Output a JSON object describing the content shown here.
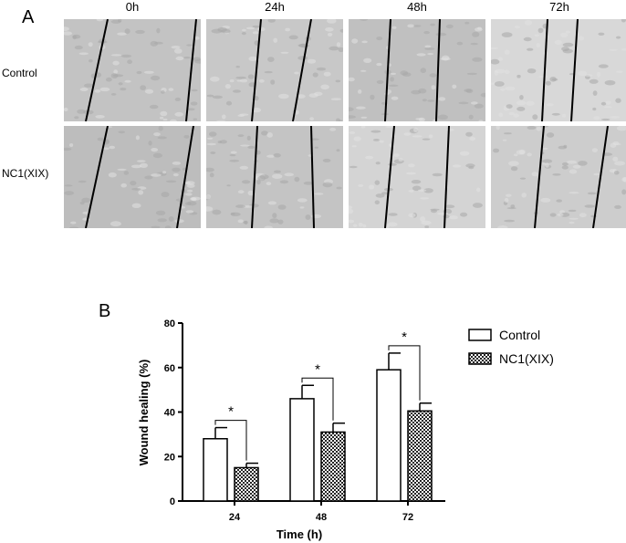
{
  "figure": {
    "panel_a_label": "A",
    "panel_b_label": "B",
    "time_columns": [
      "0h",
      "24h",
      "48h",
      "72h"
    ],
    "row_labels": [
      "Control",
      "NC1(XIX)"
    ],
    "micrograph_tones": [
      [
        "#c3c3c3",
        "#c8c8c8",
        "#c0c0c0",
        "#d8d8d8"
      ],
      [
        "#bdbdbd",
        "#c4c4c4",
        "#d4d4d4",
        "#cdcdcd"
      ]
    ]
  },
  "chart_data": {
    "type": "bar",
    "categories": [
      "24",
      "48",
      "72"
    ],
    "series": [
      {
        "name": "Control",
        "values": [
          28,
          46,
          59
        ],
        "errors": [
          5,
          6,
          7.5
        ],
        "pattern": "open"
      },
      {
        "name": "NC1(XIX)",
        "values": [
          15,
          31,
          40.5
        ],
        "errors": [
          2,
          4,
          3.5
        ],
        "pattern": "crosshatch"
      }
    ],
    "significance_marks": [
      "*",
      "*",
      "*"
    ],
    "xlabel": "Time (h)",
    "ylabel": "Wound healing (%)",
    "ylim": [
      0,
      80
    ],
    "yticks": [
      "0",
      "20",
      "40",
      "60",
      "80"
    ],
    "legend_position": "top-right",
    "grid": false
  }
}
